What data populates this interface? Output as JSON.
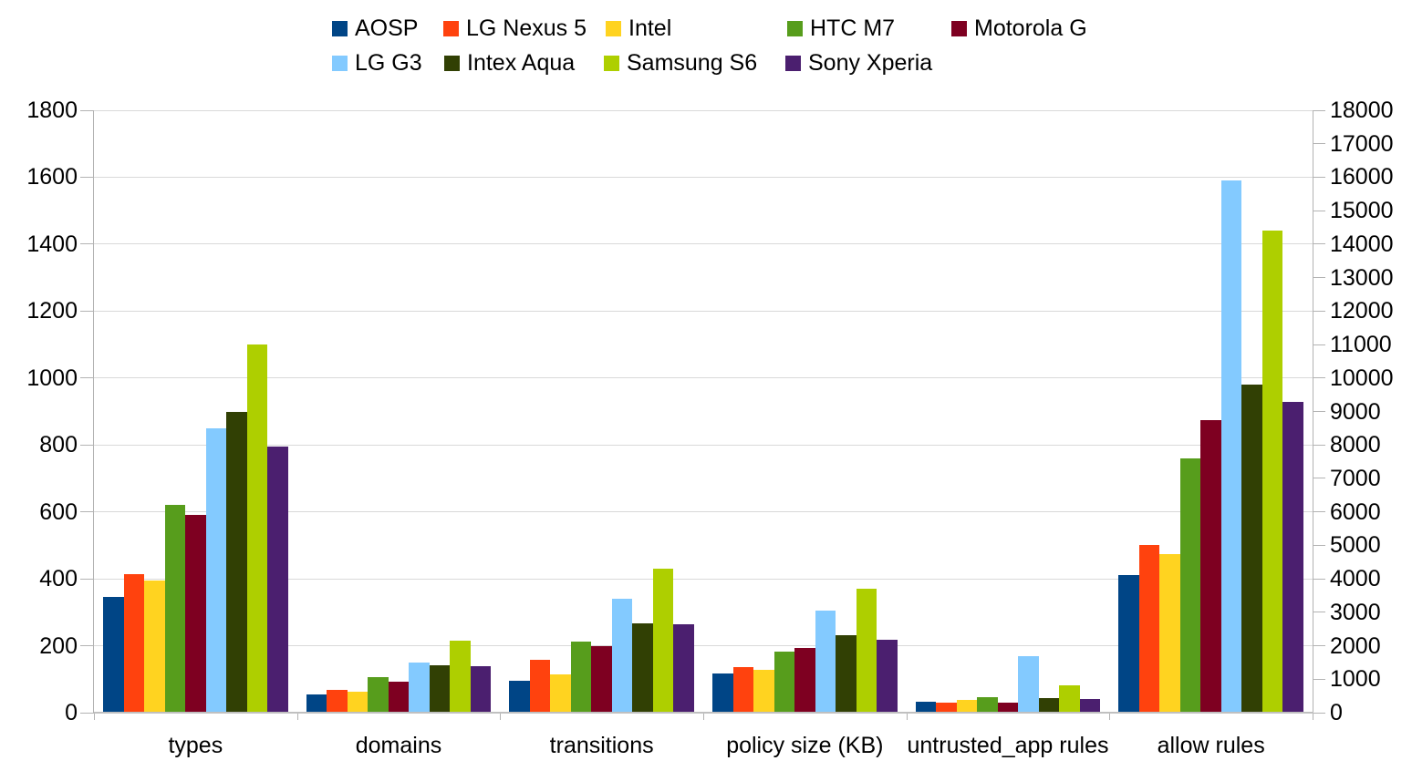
{
  "chart_data": {
    "type": "bar",
    "title": "",
    "xlabel": "",
    "ylabel_left": "",
    "ylabel_right": "",
    "grid": true,
    "legend_position": "top",
    "legend_rows": [
      [
        "AOSP",
        "LG Nexus 5",
        "Intel",
        "HTC M7",
        "Motorola G"
      ],
      [
        "LG G3",
        "Intex Aqua",
        "Samsung S6",
        "Sony Xperia"
      ]
    ],
    "categories": [
      "types",
      "domains",
      "transitions",
      "policy size (KB)",
      "untrusted_app rules",
      "allow rules"
    ],
    "category_axis": [
      "left",
      "left",
      "left",
      "left",
      "left",
      "right"
    ],
    "left_axis": {
      "min": 0,
      "max": 1800,
      "step": 200,
      "labels": [
        "0",
        "200",
        "400",
        "600",
        "800",
        "1000",
        "1200",
        "1400",
        "1600",
        "1800"
      ]
    },
    "right_axis": {
      "min": 0,
      "max": 18000,
      "step": 1000,
      "labels": [
        "0",
        "1000",
        "2000",
        "3000",
        "4000",
        "5000",
        "6000",
        "7000",
        "8000",
        "9000",
        "10000",
        "11000",
        "12000",
        "13000",
        "14000",
        "15000",
        "16000",
        "17000",
        "18000"
      ]
    },
    "series": [
      {
        "name": "AOSP",
        "color": "#004586",
        "values": [
          345,
          55,
          95,
          118,
          33,
          4100
        ]
      },
      {
        "name": "LG Nexus 5",
        "color": "#ff420e",
        "values": [
          415,
          67,
          158,
          136,
          31,
          5000
        ]
      },
      {
        "name": "Intel",
        "color": "#ffd320",
        "values": [
          395,
          64,
          115,
          127,
          39,
          4750
        ]
      },
      {
        "name": "HTC M7",
        "color": "#579d1c",
        "values": [
          620,
          107,
          213,
          183,
          47,
          7600
        ]
      },
      {
        "name": "Motorola G",
        "color": "#7e0021",
        "values": [
          590,
          92,
          200,
          194,
          31,
          8750
        ]
      },
      {
        "name": "LG G3",
        "color": "#83caff",
        "values": [
          850,
          150,
          340,
          304,
          169,
          15900
        ]
      },
      {
        "name": "Intex Aqua",
        "color": "#314004",
        "values": [
          900,
          143,
          266,
          231,
          45,
          9800
        ]
      },
      {
        "name": "Samsung S6",
        "color": "#aecf00",
        "values": [
          1100,
          215,
          430,
          370,
          82,
          14400
        ]
      },
      {
        "name": "Sony Xperia",
        "color": "#4b1f6f",
        "values": [
          795,
          140,
          265,
          219,
          42,
          9300
        ]
      }
    ],
    "colors": {
      "gridline": "#d9d9d9",
      "axis": "#b3b3b3",
      "text": "#000000",
      "background": "#ffffff"
    }
  }
}
